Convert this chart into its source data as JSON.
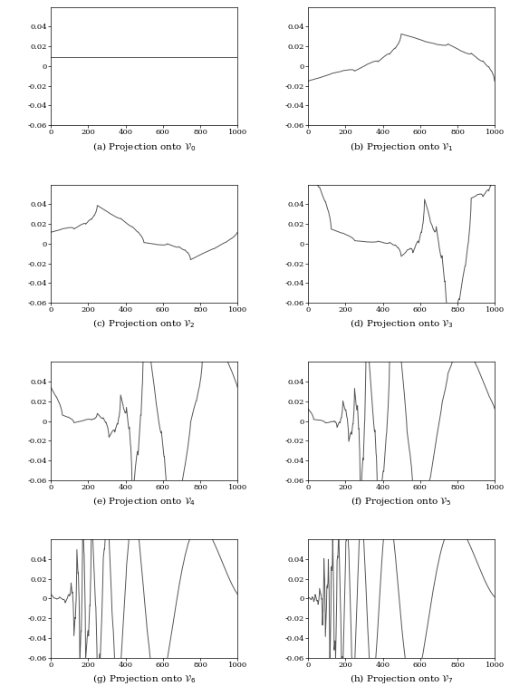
{
  "subplot_labels": [
    "(a) Projection onto $\\mathcal{V}_0$",
    "(b) Projection onto $\\mathcal{V}_1$",
    "(c) Projection onto $\\mathcal{V}_2$",
    "(d) Projection onto $\\mathcal{V}_3$",
    "(e) Projection onto $\\mathcal{V}_4$",
    "(f) Projection onto $\\mathcal{V}_5$",
    "(g) Projection onto $\\mathcal{V}_6$",
    "(h) Projection onto $\\mathcal{V}_7$"
  ],
  "ylim": [
    -0.06,
    0.06
  ],
  "xlim": [
    0,
    1000
  ],
  "xticks": [
    0,
    200,
    400,
    600,
    800,
    1000
  ],
  "yticks": [
    -0.06,
    -0.04,
    -0.02,
    0,
    0.02,
    0.04
  ],
  "ytick_labels": [
    "-0.06",
    "-0.04",
    "-0.02",
    "0",
    "0.02",
    "0.04"
  ],
  "xtick_labels": [
    "0",
    "200",
    "400",
    "600",
    "800",
    "1000"
  ],
  "line_color": "#555555",
  "line_width": 0.7,
  "figsize": [
    5.63,
    7.68
  ],
  "dpi": 100,
  "n_points": 1024,
  "signal_scale": 0.09
}
